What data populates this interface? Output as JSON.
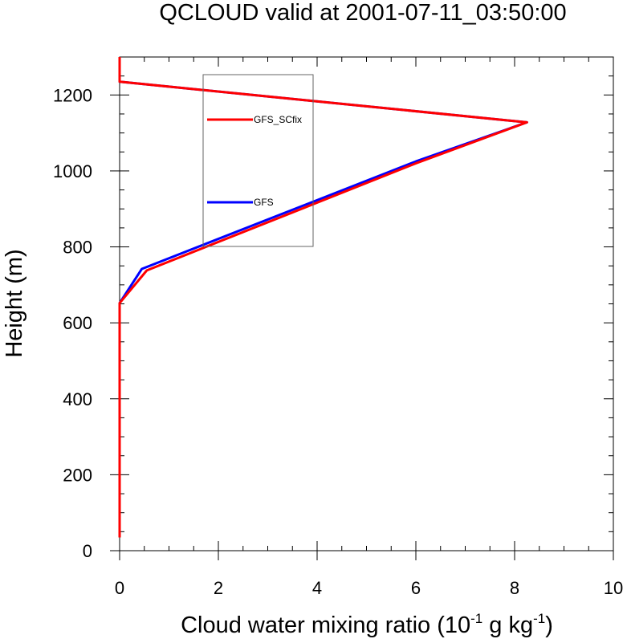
{
  "chart_data": {
    "type": "line",
    "title": "QCLOUD valid at 2001-07-11_03:50:00",
    "xlabel": {
      "main": "Cloud water mixing ratio (10",
      "exp1": "-1",
      "mid": " g kg",
      "exp2": "-1",
      "end": ")"
    },
    "ylabel": "Height (m)",
    "xlim": [
      0,
      10
    ],
    "ylim": [
      0,
      1300
    ],
    "x_ticks": [
      0,
      2,
      4,
      6,
      8,
      10
    ],
    "x_tick_labels": [
      "0",
      "2",
      "4",
      "6",
      "8",
      "10"
    ],
    "y_ticks": [
      0,
      200,
      400,
      600,
      800,
      1000,
      1200
    ],
    "y_tick_labels": [
      "0",
      "200",
      "400",
      "600",
      "800",
      "1000",
      "1200"
    ],
    "legend_position": "inside-upper-left",
    "series": [
      {
        "name": "GFS",
        "color": "#0000ff",
        "x": [
          0,
          0,
          0,
          0,
          0,
          0.45,
          6.0,
          8.25,
          0,
          0
        ],
        "y": [
          35,
          200,
          400,
          600,
          652,
          742,
          1025,
          1128,
          1235,
          1300
        ]
      },
      {
        "name": "GFS_SCfix",
        "color": "#ff0000",
        "x": [
          0,
          0,
          0,
          0,
          0,
          0.55,
          6.0,
          8.25,
          0,
          0
        ],
        "y": [
          35,
          200,
          400,
          600,
          652,
          738,
          1020,
          1128,
          1235,
          1300
        ]
      }
    ]
  }
}
